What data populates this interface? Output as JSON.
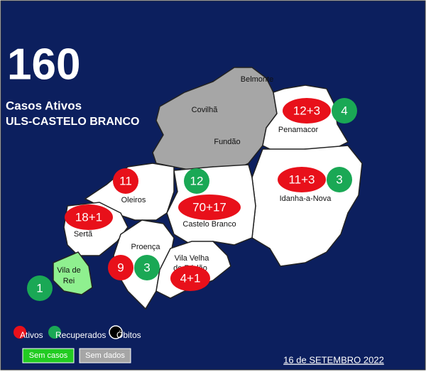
{
  "header": {
    "total": 160,
    "line1": "Casos Ativos",
    "line2": "ULS-CASTELO BRANCO"
  },
  "regions": [
    "Covilhã",
    "Fundão",
    "Belmonte",
    "Penamacor",
    "Idanha-a-Nova",
    "Castelo Branco",
    "Oleiros",
    "Sertã",
    "Proença",
    "Vila Velha",
    "de Ródão",
    "Vila de",
    "Rei"
  ],
  "bubbles": [
    "12+3",
    "4",
    "11",
    "12",
    "11+3",
    "3",
    "70+17",
    "18+1",
    "9",
    "3",
    "4+1",
    "1"
  ],
  "legend": [
    "Ativos",
    "Recuperados",
    "Óbitos"
  ],
  "status": [
    "Sem casos",
    "Sem dados"
  ],
  "date": "16 de SETEMBRO 2022"
}
